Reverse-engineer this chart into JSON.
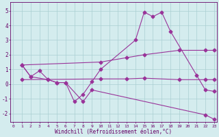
{
  "s1_x": [
    1,
    2,
    3,
    4,
    5,
    6,
    7,
    8,
    9,
    10,
    14,
    15,
    16,
    17,
    18,
    21,
    22,
    23
  ],
  "s1_y": [
    1.3,
    0.5,
    0.9,
    0.3,
    0.1,
    0.1,
    -1.2,
    -0.7,
    0.15,
    1.0,
    3.0,
    4.9,
    4.6,
    4.9,
    3.6,
    0.6,
    -0.4,
    -0.5
  ],
  "s2_x": [
    1,
    10,
    13,
    15,
    19,
    22,
    23
  ],
  "s2_y": [
    1.3,
    1.5,
    1.8,
    2.0,
    2.3,
    2.3,
    2.3
  ],
  "s3_x": [
    1,
    10,
    13,
    15,
    19,
    22,
    23
  ],
  "s3_y": [
    0.3,
    0.35,
    0.35,
    0.4,
    0.3,
    0.3,
    0.3
  ],
  "s4_x": [
    1,
    2,
    4,
    5,
    6,
    8,
    9,
    22,
    23
  ],
  "s4_y": [
    1.3,
    0.5,
    0.3,
    0.1,
    0.1,
    -1.2,
    -0.4,
    -2.1,
    -2.4
  ],
  "color": "#993399",
  "background_color": "#d4ecee",
  "grid_color": "#aacfd2",
  "text_color": "#660066",
  "xlim": [
    -0.3,
    23.3
  ],
  "ylim": [
    -2.6,
    5.6
  ],
  "yticks": [
    -2,
    -1,
    0,
    1,
    2,
    3,
    4,
    5
  ],
  "xlabel": "Windchill (Refroidissement éolien,°C)"
}
